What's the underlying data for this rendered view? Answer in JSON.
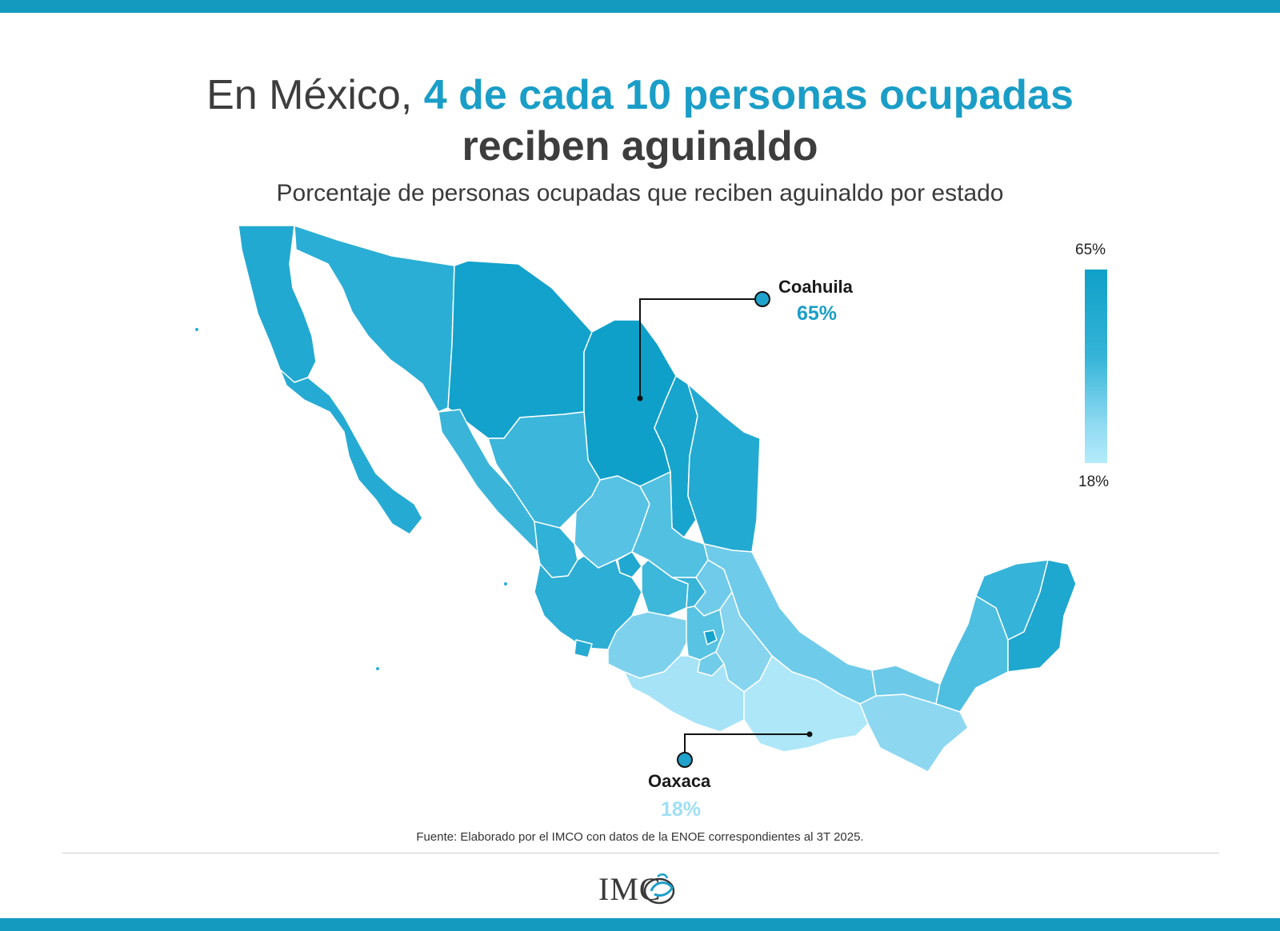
{
  "title": {
    "prefix": "En México,",
    "highlight": "4 de cada 10 personas ocupadas",
    "line2": "reciben aguinaldo"
  },
  "subtitle": "Porcentaje de personas ocupadas que reciben aguinaldo por estado",
  "legend": {
    "max": "65%",
    "min": "18%",
    "color_max": "#0fa0c8",
    "color_min": "#b5ebfb"
  },
  "callouts": {
    "coahuila": {
      "name": "Coahuila",
      "value": "65%",
      "color": "#0fa0c8"
    },
    "oaxaca": {
      "name": "Oaxaca",
      "value": "18%",
      "color": "#9edff5"
    }
  },
  "source": "Fuente: Elaborado por el IMCO con datos de la ENOE correspondientes al 3T 2025.",
  "logo": "IMC"
}
